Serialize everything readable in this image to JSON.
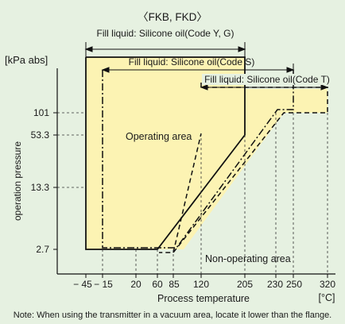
{
  "chart_data": {
    "type": "area",
    "title": "〈FKB, FKD〉",
    "xlabel": "Process temperature",
    "x_unit": "[°C]",
    "ylabel": "operation pressure",
    "y_unit": "[kPa abs]",
    "x_ticks": [
      {
        "value": -45,
        "label": "− 45"
      },
      {
        "value": -15,
        "label": "− 15"
      },
      {
        "value": 20,
        "label": "20"
      },
      {
        "value": 60,
        "label": "60"
      },
      {
        "value": 85,
        "label": "85"
      },
      {
        "value": 120,
        "label": "120"
      },
      {
        "value": 205,
        "label": "205"
      },
      {
        "value": 230,
        "label": "230"
      },
      {
        "value": 250,
        "label": "250"
      },
      {
        "value": 320,
        "label": "320"
      }
    ],
    "y_ticks": [
      {
        "value": 2.7,
        "label": "2.7"
      },
      {
        "value": 13.3,
        "label": "13.3"
      },
      {
        "value": 53.3,
        "label": "53.3"
      },
      {
        "value": 101,
        "label": "101"
      }
    ],
    "ranges": [
      {
        "name": "Fill liquid: Silicone oil(Code Y, G)",
        "x_start": -45,
        "x_end": 205
      },
      {
        "name": "Fill liquid: Silicone oil(Code S)",
        "x_start": -15,
        "x_end": 250
      },
      {
        "name": "Fill liquid: Silicone oil(Code T)",
        "x_start": 120,
        "x_end": 320
      }
    ],
    "series": [
      {
        "name": "Fill liquid: Silicone oil(Code Y, G)",
        "line": "solid",
        "x": [
          -45,
          -45,
          205,
          205,
          60,
          -45
        ],
        "y": [
          ">101",
          2.7,
          2.7,
          53.3,
          2.7,
          2.7
        ],
        "points": [
          [
            -45,
            "top"
          ],
          [
            -45,
            2.7
          ],
          [
            60,
            2.7
          ],
          [
            205,
            53.3
          ],
          [
            205,
            "top"
          ]
        ]
      },
      {
        "name": "Fill liquid: Silicone oil(Code S)",
        "line": "dash-dot",
        "points": [
          [
            -15,
            "top2"
          ],
          [
            -15,
            2.7
          ],
          [
            85,
            2.7
          ],
          [
            230,
            101
          ],
          [
            250,
            101
          ],
          [
            250,
            "top2"
          ]
        ]
      },
      {
        "name": "Fill liquid: Silicone oil(Code T)",
        "line": "dashed",
        "points": [
          [
            120,
            53.3
          ],
          [
            85,
            2.7
          ],
          [
            230,
            101
          ],
          [
            320,
            101
          ]
        ]
      }
    ],
    "annotations": [
      {
        "text": "Operating area"
      },
      {
        "text": "Non-operating area"
      }
    ]
  },
  "note": "Note: When using the transmitter in a vacuum area, locate it lower than the flange."
}
